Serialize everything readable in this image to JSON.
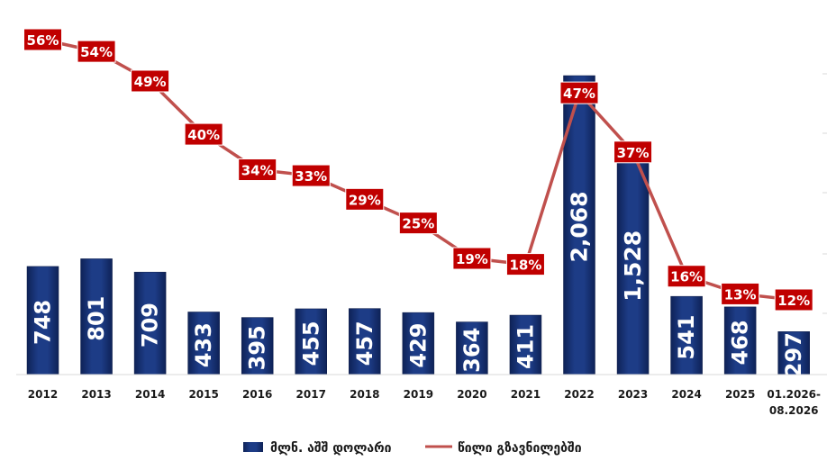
{
  "chart_data": {
    "type": "bar",
    "categories": [
      "2012",
      "2013",
      "2014",
      "2015",
      "2016",
      "2017",
      "2018",
      "2019",
      "2020",
      "2021",
      "2022",
      "2023",
      "2024",
      "2025",
      "01.2026-\n08.2026"
    ],
    "series": [
      {
        "name": "მლნ. აშშ დოლარი",
        "type": "bar",
        "values": [
          748,
          801,
          709,
          433,
          395,
          455,
          457,
          429,
          364,
          411,
          2068,
          1528,
          541,
          468,
          297
        ],
        "labels": [
          "748",
          "801",
          "709",
          "433",
          "395",
          "455",
          "457",
          "429",
          "364",
          "411",
          "2,068",
          "1,528",
          "541",
          "468",
          "297"
        ],
        "color": "#16306f"
      },
      {
        "name": "წილი გზავნილებში",
        "type": "line",
        "values": [
          56,
          54,
          49,
          40,
          34,
          33,
          29,
          25,
          19,
          18,
          47,
          37,
          16,
          13,
          12
        ],
        "labels": [
          "56%",
          "54%",
          "49%",
          "40%",
          "34%",
          "33%",
          "29%",
          "25%",
          "19%",
          "18%",
          "47%",
          "37%",
          "16%",
          "13%",
          "12%"
        ],
        "color": "#c0504d",
        "label_color": "#c00000"
      }
    ],
    "legend": {
      "placement": "bottom",
      "entries": [
        "მლნ. აშშ დოლარი",
        "წილი გზავნილებში"
      ]
    },
    "bar_ylim": [
      0,
      2500
    ],
    "line_ylim": [
      0,
      60
    ],
    "grid": false
  }
}
